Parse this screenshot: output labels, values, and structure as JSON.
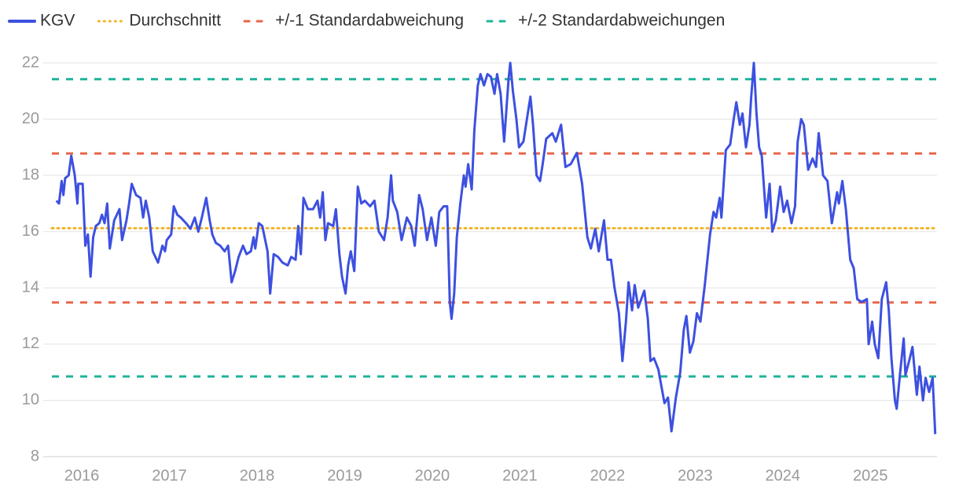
{
  "chart_data": {
    "type": "line",
    "series": [
      {
        "name": "KGV",
        "color": "#3d50e0",
        "x": [
          2015.71,
          2015.74,
          2015.77,
          2015.79,
          2015.81,
          2015.85,
          2015.88,
          2015.92,
          2015.95,
          2015.96,
          2016.01,
          2016.04,
          2016.07,
          2016.1,
          2016.13,
          2016.16,
          2016.2,
          2016.23,
          2016.26,
          2016.29,
          2016.32,
          2016.37,
          2016.43,
          2016.46,
          2016.51,
          2016.54,
          2016.57,
          2016.62,
          2016.67,
          2016.7,
          2016.73,
          2016.77,
          2016.81,
          2016.87,
          2016.92,
          2016.95,
          2016.97,
          2017.02,
          2017.05,
          2017.09,
          2017.13,
          2017.19,
          2017.24,
          2017.29,
          2017.33,
          2017.37,
          2017.42,
          2017.46,
          2017.49,
          2017.53,
          2017.58,
          2017.63,
          2017.67,
          2017.71,
          2017.75,
          2017.79,
          2017.84,
          2017.88,
          2017.93,
          2017.96,
          2017.98,
          2018.02,
          2018.06,
          2018.12,
          2018.15,
          2018.19,
          2018.24,
          2018.29,
          2018.35,
          2018.39,
          2018.44,
          2018.47,
          2018.5,
          2018.53,
          2018.58,
          2018.64,
          2018.69,
          2018.72,
          2018.75,
          2018.78,
          2018.81,
          2018.87,
          2018.9,
          2018.94,
          2018.97,
          2019.01,
          2019.04,
          2019.07,
          2019.11,
          2019.15,
          2019.19,
          2019.23,
          2019.29,
          2019.34,
          2019.39,
          2019.45,
          2019.49,
          2019.53,
          2019.55,
          2019.6,
          2019.65,
          2019.71,
          2019.76,
          2019.8,
          2019.85,
          2019.89,
          2019.94,
          2019.99,
          2020.04,
          2020.08,
          2020.13,
          2020.17,
          2020.2,
          2020.22,
          2020.25,
          2020.28,
          2020.32,
          2020.36,
          2020.38,
          2020.41,
          2020.45,
          2020.48,
          2020.52,
          2020.55,
          2020.59,
          2020.63,
          2020.67,
          2020.71,
          2020.74,
          2020.78,
          2020.82,
          2020.87,
          2020.89,
          2020.92,
          2020.96,
          2020.99,
          2021.04,
          2021.12,
          2021.15,
          2021.19,
          2021.23,
          2021.26,
          2021.3,
          2021.37,
          2021.41,
          2021.47,
          2021.52,
          2021.58,
          2021.65,
          2021.71,
          2021.77,
          2021.81,
          2021.86,
          2021.9,
          2021.96,
          2022.0,
          2022.04,
          2022.08,
          2022.13,
          2022.17,
          2022.21,
          2022.24,
          2022.28,
          2022.31,
          2022.35,
          2022.42,
          2022.46,
          2022.49,
          2022.53,
          2022.58,
          2022.65,
          2022.69,
          2022.73,
          2022.78,
          2022.83,
          2022.87,
          2022.9,
          2022.94,
          2022.98,
          2023.02,
          2023.06,
          2023.11,
          2023.17,
          2023.21,
          2023.24,
          2023.28,
          2023.3,
          2023.35,
          2023.4,
          2023.44,
          2023.47,
          2023.51,
          2023.54,
          2023.58,
          2023.62,
          2023.64,
          2023.67,
          2023.7,
          2023.73,
          2023.76,
          2023.81,
          2023.85,
          2023.88,
          2023.92,
          2023.97,
          2024.01,
          2024.05,
          2024.1,
          2024.14,
          2024.17,
          2024.21,
          2024.24,
          2024.29,
          2024.34,
          2024.38,
          2024.41,
          2024.46,
          2024.51,
          2024.56,
          2024.62,
          2024.64,
          2024.68,
          2024.72,
          2024.77,
          2024.81,
          2024.85,
          2024.9,
          2024.96,
          2024.98,
          2025.02,
          2025.05,
          2025.09,
          2025.13,
          2025.18,
          2025.21,
          2025.24,
          2025.28,
          2025.3,
          2025.34,
          2025.38,
          2025.4,
          2025.45,
          2025.48,
          2025.53,
          2025.56,
          2025.6,
          2025.63,
          2025.67,
          2025.71,
          2025.74
        ],
        "values": [
          17.1,
          17.0,
          17.8,
          17.3,
          17.9,
          18.0,
          18.7,
          18.0,
          17.0,
          17.7,
          17.7,
          15.5,
          15.9,
          14.4,
          15.8,
          16.2,
          16.3,
          16.6,
          16.3,
          17.0,
          15.4,
          16.4,
          16.8,
          15.7,
          16.4,
          17.0,
          17.7,
          17.3,
          17.2,
          16.5,
          17.1,
          16.5,
          15.3,
          14.9,
          15.5,
          15.3,
          15.7,
          15.9,
          16.9,
          16.6,
          16.5,
          16.3,
          16.1,
          16.5,
          16.0,
          16.5,
          17.2,
          16.4,
          15.9,
          15.6,
          15.5,
          15.3,
          15.5,
          14.2,
          14.6,
          15.1,
          15.5,
          15.2,
          15.3,
          15.8,
          15.4,
          16.3,
          16.2,
          15.3,
          13.8,
          15.2,
          15.1,
          14.9,
          14.8,
          15.1,
          15.0,
          16.2,
          15.2,
          17.2,
          16.8,
          16.8,
          17.1,
          16.5,
          17.4,
          15.7,
          16.3,
          16.2,
          16.8,
          15.2,
          14.4,
          13.8,
          14.8,
          15.3,
          14.6,
          17.6,
          17.0,
          17.1,
          16.9,
          17.1,
          16.0,
          15.7,
          16.5,
          18.0,
          17.1,
          16.7,
          15.7,
          16.5,
          16.2,
          15.5,
          17.3,
          16.8,
          15.7,
          16.5,
          15.5,
          16.7,
          16.9,
          16.9,
          13.5,
          12.9,
          13.8,
          15.8,
          17.0,
          18.0,
          17.6,
          18.4,
          17.5,
          19.6,
          21.2,
          21.6,
          21.2,
          21.6,
          21.5,
          20.9,
          21.6,
          20.9,
          19.2,
          21.4,
          22.0,
          21.0,
          20.0,
          19.0,
          19.2,
          20.8,
          19.8,
          18.0,
          17.8,
          18.4,
          19.3,
          19.5,
          19.2,
          19.8,
          18.3,
          18.4,
          18.8,
          17.7,
          15.8,
          15.4,
          16.1,
          15.3,
          16.4,
          15.0,
          15.0,
          14.0,
          13.1,
          11.4,
          12.8,
          14.2,
          13.2,
          14.1,
          13.3,
          13.9,
          12.9,
          11.4,
          11.5,
          11.1,
          9.9,
          10.1,
          8.9,
          10.1,
          11.0,
          12.5,
          13.0,
          11.7,
          12.1,
          13.1,
          12.8,
          14.1,
          15.9,
          16.7,
          16.5,
          17.2,
          16.5,
          18.9,
          19.1,
          20.0,
          20.6,
          19.8,
          20.2,
          19.0,
          19.8,
          20.8,
          22.0,
          20.2,
          19.0,
          18.7,
          16.5,
          17.7,
          16.0,
          16.4,
          17.6,
          16.7,
          17.1,
          16.3,
          16.9,
          19.2,
          20.0,
          19.8,
          18.2,
          18.6,
          18.3,
          19.5,
          18.0,
          17.8,
          16.3,
          17.4,
          17.0,
          17.8,
          16.8,
          15.0,
          14.7,
          13.6,
          13.5,
          13.6,
          12.0,
          12.8,
          12.0,
          11.5,
          13.6,
          14.2,
          13.2,
          11.5,
          10.0,
          9.7,
          11.0,
          12.2,
          10.9,
          11.5,
          11.9,
          10.2,
          11.2,
          10.0,
          10.8,
          10.3,
          10.8,
          8.8
        ]
      }
    ],
    "reference_lines": [
      {
        "name": "Durchschnitt",
        "color": "#f0b429",
        "style": "dotted",
        "values": [
          16.12
        ]
      },
      {
        "name": "+/-1 Standardabweichung",
        "color": "#e8664a",
        "style": "dashed",
        "values": [
          18.78,
          13.48
        ]
      },
      {
        "name": "+/-2 Standardabweichungen",
        "color": "#1fb39a",
        "style": "dashed",
        "values": [
          21.42,
          10.85
        ]
      }
    ],
    "xlim": [
      2015.56,
      2025.76
    ],
    "xticks": [
      2016,
      2017,
      2018,
      2019,
      2020,
      2021,
      2022,
      2023,
      2024,
      2025
    ],
    "ylim": [
      8,
      22
    ],
    "yticks": [
      8,
      10,
      12,
      14,
      16,
      18,
      20,
      22
    ],
    "grid": true,
    "legend": "top"
  }
}
